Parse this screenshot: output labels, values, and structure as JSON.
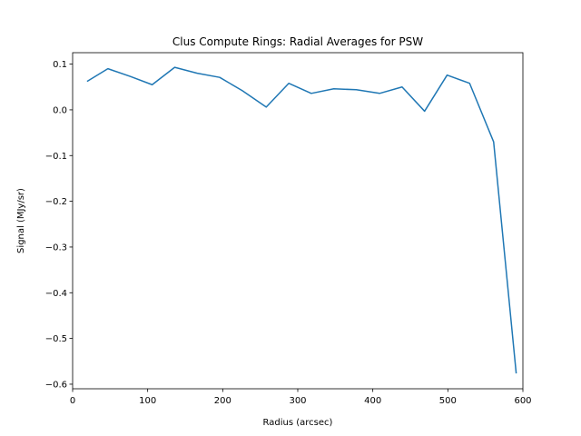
{
  "chart_data": {
    "type": "line",
    "title": "Clus Compute Rings: Radial Averages for PSW",
    "xlabel": "Radius (arcsec)",
    "ylabel": "Signal (MJy/sr)",
    "xlim": [
      0,
      600
    ],
    "ylim": [
      -0.61,
      0.125
    ],
    "xticks": [
      0,
      100,
      200,
      300,
      400,
      500,
      600
    ],
    "xtick_labels": [
      "0",
      "100",
      "200",
      "300",
      "400",
      "500",
      "600"
    ],
    "yticks": [
      0.1,
      0.0,
      -0.1,
      -0.2,
      -0.3,
      -0.4,
      -0.5,
      -0.6
    ],
    "ytick_labels": [
      "0.1",
      "0.0",
      "−0.1",
      "−0.2",
      "−0.3",
      "−0.4",
      "−0.5",
      "−0.6"
    ],
    "grid": false,
    "series": [
      {
        "color": "#1f77b4",
        "x": [
          20,
          47,
          77,
          106,
          136,
          166,
          196,
          226,
          258,
          288,
          318,
          348,
          378,
          409,
          439,
          469,
          499,
          529,
          561,
          591
        ],
        "y": [
          0.063,
          0.09,
          0.073,
          0.055,
          0.093,
          0.08,
          0.071,
          0.042,
          0.006,
          0.058,
          0.036,
          0.046,
          0.044,
          0.036,
          0.05,
          -0.003,
          0.076,
          0.058,
          -0.07,
          -0.575
        ]
      }
    ]
  }
}
